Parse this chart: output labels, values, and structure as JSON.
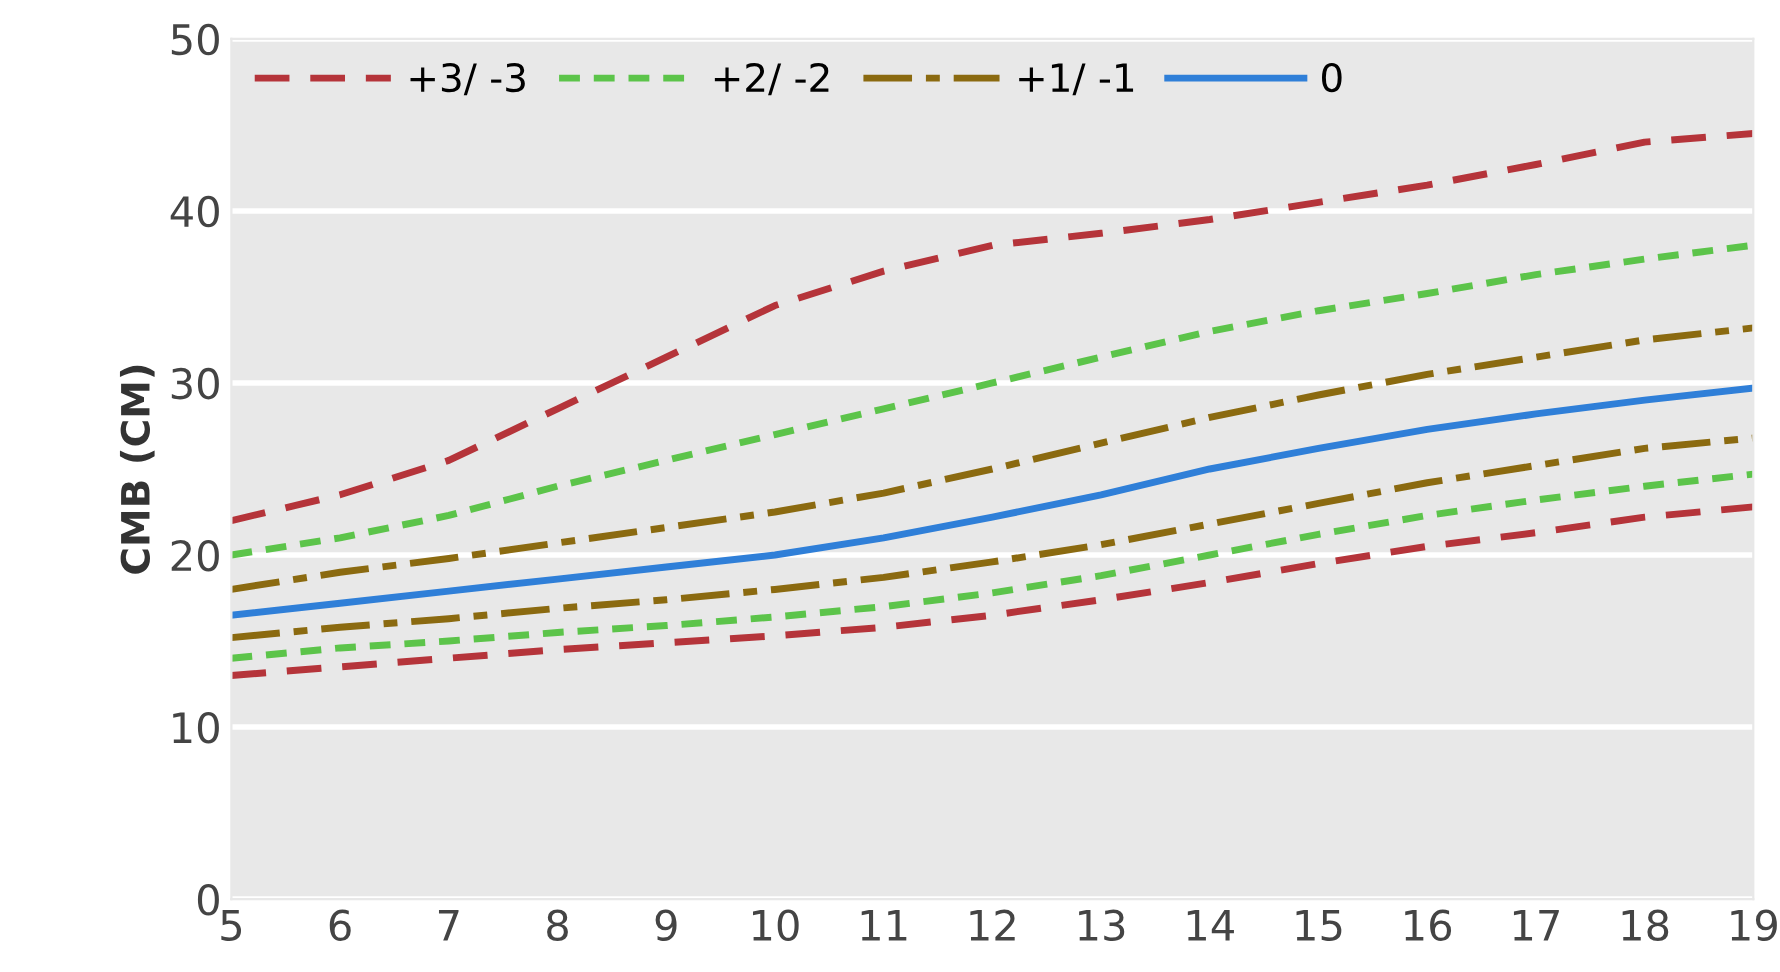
{
  "chart_data": {
    "type": "line",
    "ylabel": "CMB (CM)",
    "x": [
      5,
      6,
      7,
      8,
      9,
      10,
      11,
      12,
      13,
      14,
      15,
      16,
      17,
      18,
      19
    ],
    "xlim": [
      5,
      19
    ],
    "xticks": [
      5,
      6,
      7,
      8,
      9,
      10,
      11,
      12,
      13,
      14,
      15,
      16,
      17,
      18,
      19
    ],
    "ylim": [
      0,
      50
    ],
    "yticks": [
      0,
      10,
      20,
      30,
      40,
      50
    ],
    "grid": "y",
    "legend": "top left",
    "marker": "none",
    "series": [
      {
        "name": "+3/ -3",
        "color": "#b5343a",
        "line_style": "dashed",
        "values": [
          22,
          23.5,
          25.5,
          28.5,
          31.5,
          34.5,
          36.5,
          38,
          38.7,
          39.5,
          40.5,
          41.5,
          42.7,
          44,
          44.5
        ]
      },
      {
        "name": "+2/ -2",
        "color": "#5cc44a",
        "line_style": "dotted",
        "values": [
          20,
          21,
          22.3,
          24,
          25.5,
          27,
          28.5,
          30,
          31.5,
          33,
          34.2,
          35.2,
          36.3,
          37.2,
          38
        ]
      },
      {
        "name": "+1/ -1",
        "color": "#8b6a10",
        "line_style": "dashdot",
        "values": [
          18,
          19,
          19.8,
          20.7,
          21.6,
          22.5,
          23.6,
          25,
          26.5,
          28,
          29.3,
          30.5,
          31.5,
          32.5,
          33.2
        ]
      },
      {
        "name": "0",
        "color": "#2f7fd8",
        "line_style": "solid",
        "values": [
          16.5,
          17.2,
          17.9,
          18.6,
          19.3,
          20,
          21,
          22.2,
          23.5,
          25,
          26.2,
          27.3,
          28.2,
          29,
          29.7
        ]
      },
      {
        "color": "#8b6a10",
        "line_style": "dashdot",
        "values": [
          15.2,
          15.8,
          16.3,
          16.9,
          17.4,
          18,
          18.7,
          19.6,
          20.6,
          21.8,
          23,
          24.2,
          25.2,
          26.2,
          26.8
        ]
      },
      {
        "color": "#5cc44a",
        "line_style": "dotted",
        "values": [
          14,
          14.6,
          15,
          15.5,
          15.9,
          16.4,
          17,
          17.8,
          18.8,
          20,
          21.2,
          22.3,
          23.2,
          24,
          24.7
        ]
      },
      {
        "color": "#b5343a",
        "line_style": "dashed",
        "values": [
          13,
          13.5,
          14,
          14.5,
          14.9,
          15.3,
          15.8,
          16.5,
          17.4,
          18.4,
          19.5,
          20.5,
          21.3,
          22.2,
          22.8
        ]
      }
    ]
  }
}
